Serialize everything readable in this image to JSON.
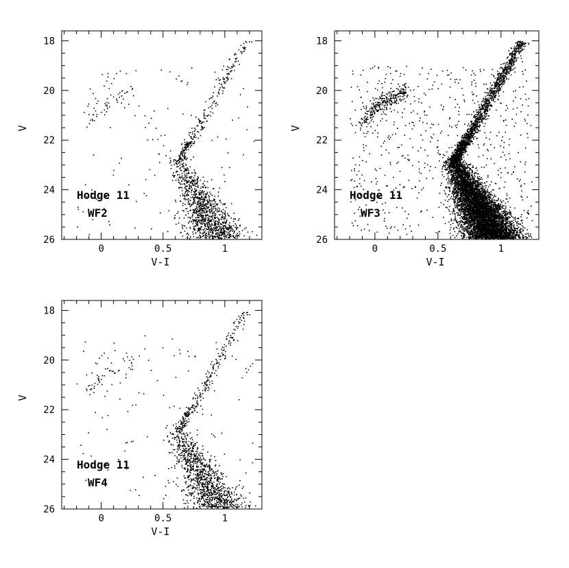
{
  "figure": {
    "background": "#ffffff",
    "ink": "#000000"
  },
  "chart_data": [
    {
      "type": "scatter",
      "title": "",
      "xlabel": "V-I",
      "ylabel": "V",
      "xlim": [
        -0.32,
        1.3
      ],
      "ylim": [
        26,
        17.6
      ],
      "xticks": [
        0,
        0.5,
        1
      ],
      "xtick_labels": [
        "0",
        "0.5",
        "1"
      ],
      "yticks": [
        18,
        20,
        22,
        24,
        26
      ],
      "ytick_labels": [
        "18",
        "20",
        "22",
        "24",
        "26"
      ],
      "label_line1": "Hodge 11",
      "label_line2": "WF2",
      "grid": false,
      "density": "sparse",
      "points_x": [
        -0.06,
        -0.05,
        -0.04,
        -0.07,
        -0.05,
        0.02,
        0.04,
        0.05,
        0.06,
        0.08,
        0.1,
        0.12,
        0.15,
        0.2,
        0.25,
        0.3,
        0.35,
        0.38,
        0.4,
        0.44,
        0.48,
        0.5,
        0.52,
        0.55,
        0.58,
        0.6,
        0.62,
        0.65,
        0.68,
        0.7,
        0.72,
        0.75,
        0.78,
        0.8,
        0.82,
        0.85,
        0.88,
        0.9,
        0.92,
        0.95,
        0.98,
        1.0,
        1.05,
        1.1,
        1.15
      ],
      "points_y": [
        21.2,
        20.8,
        20.5,
        20.1,
        20.3,
        19.8,
        19.6,
        19.3,
        19.9,
        19.7,
        19.5,
        19.3,
        19.2,
        19.3,
        19.9,
        20.6,
        21.0,
        21.3,
        21.1,
        21.5,
        21.8,
        22.2,
        22.6,
        22.9,
        23.3,
        23.6,
        22.8,
        23.9,
        22.3,
        24.2,
        22.1,
        24.5,
        21.9,
        24.7,
        21.5,
        24.9,
        21.0,
        25.0,
        20.5,
        25.2,
        20.0,
        25.3,
        19.5,
        25.5,
        18.4
      ]
    },
    {
      "type": "scatter",
      "title": "",
      "xlabel": "V-I",
      "ylabel": "V",
      "xlim": [
        -0.32,
        1.3
      ],
      "ylim": [
        26,
        17.6
      ],
      "xticks": [
        0,
        0.5,
        1
      ],
      "xtick_labels": [
        "0",
        "0.5",
        "1"
      ],
      "yticks": [
        18,
        20,
        22,
        24,
        26
      ],
      "ytick_labels": [
        "18",
        "20",
        "22",
        "24",
        "26"
      ],
      "label_line1": "Hodge 11",
      "label_line2": "WF3",
      "grid": false,
      "density": "dense",
      "points_x": [
        -0.12,
        -0.08,
        -0.04,
        0.0,
        0.02,
        0.03,
        0.05,
        0.08,
        0.12,
        0.16,
        0.2,
        0.25,
        0.3,
        0.35,
        0.4,
        0.45,
        0.5,
        0.55,
        0.58,
        0.6,
        0.62,
        0.64,
        0.66,
        0.7,
        0.74,
        0.78,
        0.82,
        0.86,
        0.9,
        0.94,
        0.98,
        1.02,
        1.06,
        1.1,
        1.15
      ],
      "points_y": [
        21.3,
        20.9,
        20.4,
        19.9,
        19.7,
        19.6,
        19.7,
        19.5,
        19.3,
        19.2,
        19.3,
        20.2,
        20.8,
        21.2,
        21.6,
        21.9,
        22.4,
        22.9,
        23.3,
        23.6,
        22.6,
        24.0,
        22.3,
        24.4,
        22.0,
        24.7,
        21.6,
        24.9,
        21.0,
        25.1,
        20.2,
        25.2,
        19.3,
        25.4,
        18.0
      ]
    },
    {
      "type": "scatter",
      "title": "",
      "xlabel": "V-I",
      "ylabel": "V",
      "xlim": [
        -0.32,
        1.3
      ],
      "ylim": [
        26,
        17.6
      ],
      "xticks": [
        0,
        0.5,
        1
      ],
      "xtick_labels": [
        "0",
        "0.5",
        "1"
      ],
      "yticks": [
        18,
        20,
        22,
        24,
        26
      ],
      "ytick_labels": [
        "18",
        "20",
        "22",
        "24",
        "26"
      ],
      "label_line1": "Hodge 11",
      "label_line2": "WF4",
      "grid": false,
      "density": "sparse",
      "points_x": [
        -0.1,
        -0.08,
        -0.05,
        -0.02,
        0.0,
        0.02,
        0.05,
        0.1,
        0.15,
        0.2,
        0.25,
        0.3,
        0.35,
        0.4,
        0.45,
        0.5,
        0.55,
        0.58,
        0.6,
        0.62,
        0.65,
        0.68,
        0.7,
        0.72,
        0.75,
        0.78,
        0.8,
        0.83,
        0.86,
        0.9,
        0.93,
        0.96,
        1.0,
        1.05,
        1.1,
        1.15
      ],
      "points_y": [
        21.0,
        20.5,
        20.1,
        19.9,
        19.8,
        19.7,
        19.9,
        19.3,
        20.9,
        19.7,
        21.8,
        21.3,
        19.0,
        20.4,
        20.8,
        21.4,
        21.9,
        22.6,
        23.1,
        23.6,
        22.5,
        24.0,
        22.2,
        24.3,
        22.0,
        24.6,
        21.6,
        24.8,
        21.2,
        25.0,
        20.6,
        25.2,
        19.9,
        25.3,
        19.2,
        18.3
      ]
    }
  ]
}
